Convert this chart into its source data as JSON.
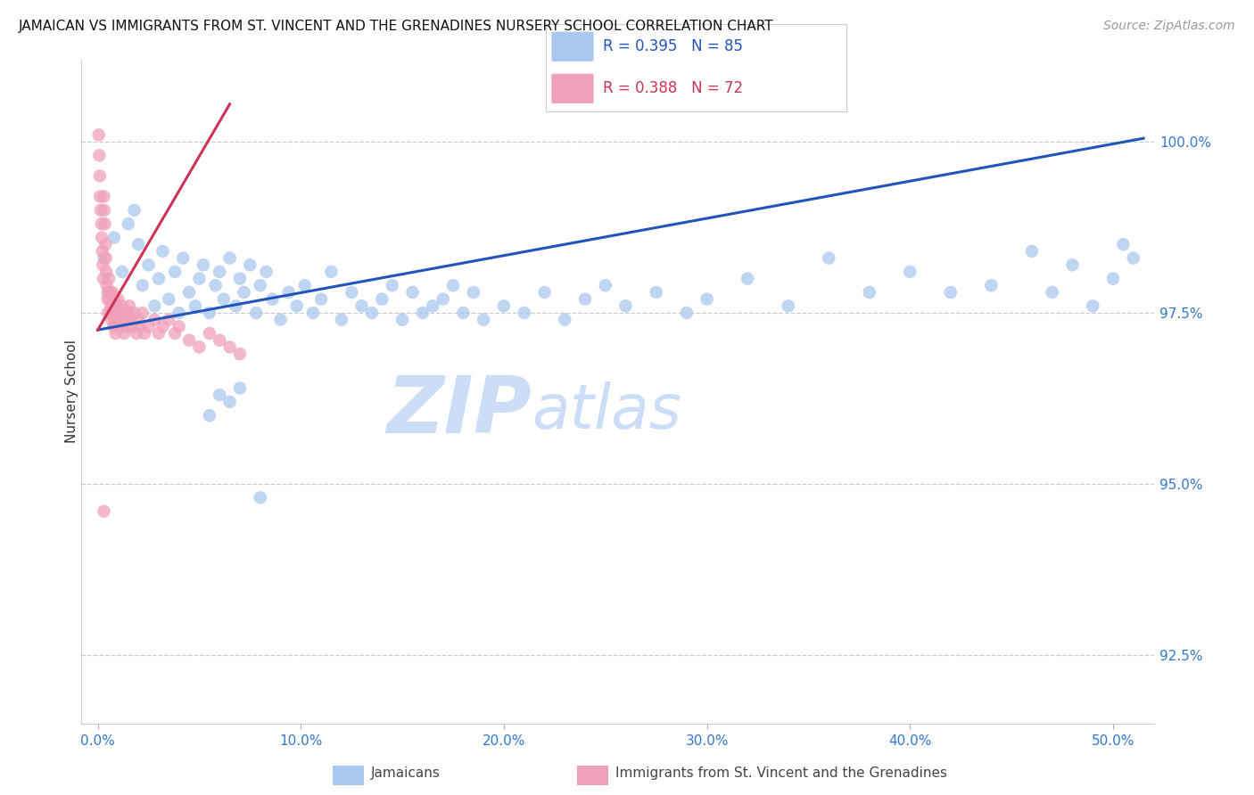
{
  "title": "JAMAICAN VS IMMIGRANTS FROM ST. VINCENT AND THE GRENADINES NURSERY SCHOOL CORRELATION CHART",
  "source": "Source: ZipAtlas.com",
  "xlabel_vals": [
    0.0,
    10.0,
    20.0,
    30.0,
    40.0,
    50.0
  ],
  "ylabel": "Nursery School",
  "ylabel_right_vals": [
    100.0,
    97.5,
    95.0,
    92.5
  ],
  "ylim": [
    91.5,
    101.2
  ],
  "xlim": [
    -0.8,
    52.0
  ],
  "legend_blue_R": "R = 0.395",
  "legend_blue_N": "N = 85",
  "legend_pink_R": "R = 0.388",
  "legend_pink_N": "N = 72",
  "blue_color": "#aac8ee",
  "pink_color": "#f0a0b8",
  "line_blue_color": "#2255bb",
  "line_pink_color": "#cc3355",
  "watermark_zip": "ZIP",
  "watermark_atlas": "atlas",
  "watermark_color": "#ccddf8",
  "blue_line_x0": 0.0,
  "blue_line_y0": 97.25,
  "blue_line_x1": 51.5,
  "blue_line_y1": 100.05,
  "pink_line_x0": 0.0,
  "pink_line_y0": 97.25,
  "pink_line_x1": 6.5,
  "pink_line_y1": 100.55,
  "blue_scatter_x": [
    0.3,
    0.5,
    0.8,
    1.0,
    1.2,
    1.5,
    1.8,
    2.0,
    2.2,
    2.5,
    2.8,
    3.0,
    3.2,
    3.5,
    3.8,
    4.0,
    4.2,
    4.5,
    4.8,
    5.0,
    5.2,
    5.5,
    5.8,
    6.0,
    6.2,
    6.5,
    6.8,
    7.0,
    7.2,
    7.5,
    7.8,
    8.0,
    8.3,
    8.6,
    9.0,
    9.4,
    9.8,
    10.2,
    10.6,
    11.0,
    11.5,
    12.0,
    12.5,
    13.0,
    13.5,
    14.0,
    14.5,
    15.0,
    15.5,
    16.0,
    16.5,
    17.0,
    17.5,
    18.0,
    18.5,
    19.0,
    20.0,
    21.0,
    22.0,
    23.0,
    24.0,
    25.0,
    26.0,
    27.5,
    29.0,
    30.0,
    32.0,
    34.0,
    36.0,
    38.0,
    40.0,
    42.0,
    44.0,
    46.0,
    47.0,
    48.0,
    49.0,
    50.0,
    50.5,
    51.0,
    5.5,
    6.0,
    6.5,
    7.0,
    8.0
  ],
  "blue_scatter_y": [
    98.3,
    97.8,
    98.6,
    97.5,
    98.1,
    98.8,
    99.0,
    98.5,
    97.9,
    98.2,
    97.6,
    98.0,
    98.4,
    97.7,
    98.1,
    97.5,
    98.3,
    97.8,
    97.6,
    98.0,
    98.2,
    97.5,
    97.9,
    98.1,
    97.7,
    98.3,
    97.6,
    98.0,
    97.8,
    98.2,
    97.5,
    97.9,
    98.1,
    97.7,
    97.4,
    97.8,
    97.6,
    97.9,
    97.5,
    97.7,
    98.1,
    97.4,
    97.8,
    97.6,
    97.5,
    97.7,
    97.9,
    97.4,
    97.8,
    97.5,
    97.6,
    97.7,
    97.9,
    97.5,
    97.8,
    97.4,
    97.6,
    97.5,
    97.8,
    97.4,
    97.7,
    97.9,
    97.6,
    97.8,
    97.5,
    97.7,
    98.0,
    97.6,
    98.3,
    97.8,
    98.1,
    97.8,
    97.9,
    98.4,
    97.8,
    98.2,
    97.6,
    98.0,
    98.5,
    98.3,
    96.0,
    96.3,
    96.2,
    96.4,
    94.8
  ],
  "pink_scatter_x": [
    0.05,
    0.08,
    0.1,
    0.12,
    0.15,
    0.18,
    0.2,
    0.22,
    0.25,
    0.28,
    0.3,
    0.32,
    0.35,
    0.38,
    0.4,
    0.42,
    0.45,
    0.48,
    0.5,
    0.52,
    0.55,
    0.58,
    0.6,
    0.62,
    0.65,
    0.68,
    0.7,
    0.72,
    0.75,
    0.78,
    0.8,
    0.82,
    0.85,
    0.88,
    0.9,
    0.92,
    0.95,
    0.98,
    1.0,
    1.05,
    1.1,
    1.15,
    1.2,
    1.25,
    1.3,
    1.35,
    1.4,
    1.45,
    1.5,
    1.55,
    1.6,
    1.7,
    1.8,
    1.9,
    2.0,
    2.1,
    2.2,
    2.3,
    2.5,
    2.8,
    3.0,
    3.2,
    3.5,
    3.8,
    4.0,
    4.5,
    5.0,
    5.5,
    6.0,
    6.5,
    7.0,
    0.3
  ],
  "pink_scatter_y": [
    100.1,
    99.8,
    99.5,
    99.2,
    99.0,
    98.8,
    98.6,
    98.4,
    98.2,
    98.0,
    99.2,
    99.0,
    98.8,
    98.5,
    98.3,
    98.1,
    97.9,
    97.7,
    97.5,
    97.8,
    98.0,
    97.7,
    97.5,
    97.8,
    97.6,
    97.4,
    97.6,
    97.8,
    97.5,
    97.3,
    97.5,
    97.7,
    97.4,
    97.2,
    97.4,
    97.6,
    97.3,
    97.5,
    97.7,
    97.5,
    97.3,
    97.5,
    97.6,
    97.4,
    97.2,
    97.4,
    97.5,
    97.3,
    97.5,
    97.6,
    97.4,
    97.3,
    97.5,
    97.2,
    97.4,
    97.3,
    97.5,
    97.2,
    97.3,
    97.4,
    97.2,
    97.3,
    97.4,
    97.2,
    97.3,
    97.1,
    97.0,
    97.2,
    97.1,
    97.0,
    96.9,
    94.6
  ]
}
